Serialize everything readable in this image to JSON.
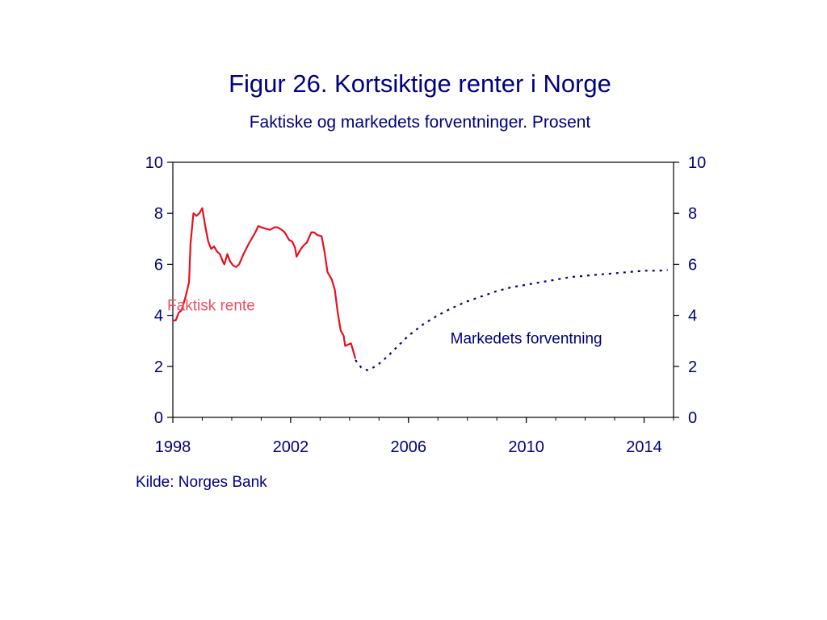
{
  "title": "Figur 26. Kortsiktige renter i Norge",
  "subtitle": "Faktiske og markedets forventninger. Prosent",
  "source": "Kilde: Norges Bank",
  "colors": {
    "actual": "#e8101c",
    "expected": "#000080",
    "text": "#000080",
    "annotation_actual": "#f05060"
  },
  "chart_data": {
    "type": "line",
    "title": "Figur 26. Kortsiktige renter i Norge",
    "subtitle": "Faktiske og markedets forventninger. Prosent",
    "xlabel": "",
    "ylabel": "",
    "xlim": [
      1998,
      2015
    ],
    "ylim": [
      0,
      10
    ],
    "x_ticks": [
      "1998",
      "2002",
      "2006",
      "2010",
      "2014"
    ],
    "y_ticks": [
      "0",
      "2",
      "4",
      "6",
      "8",
      "10"
    ],
    "grid": false,
    "dual_y_axis": true,
    "series": [
      {
        "label": "Faktisk rente",
        "style": "solid",
        "color": "#e8101c",
        "points": [
          [
            1998.0,
            3.8
          ],
          [
            1998.1,
            3.8
          ],
          [
            1998.2,
            4.1
          ],
          [
            1998.3,
            4.2
          ],
          [
            1998.45,
            4.8
          ],
          [
            1998.55,
            5.3
          ],
          [
            1998.6,
            6.8
          ],
          [
            1998.7,
            8.0
          ],
          [
            1998.8,
            7.9
          ],
          [
            1998.9,
            8.0
          ],
          [
            1999.0,
            8.2
          ],
          [
            1999.1,
            7.5
          ],
          [
            1999.2,
            6.9
          ],
          [
            1999.3,
            6.6
          ],
          [
            1999.4,
            6.7
          ],
          [
            1999.5,
            6.5
          ],
          [
            1999.6,
            6.4
          ],
          [
            1999.7,
            6.1
          ],
          [
            1999.75,
            6.0
          ],
          [
            1999.85,
            6.4
          ],
          [
            1999.95,
            6.1
          ],
          [
            2000.05,
            5.95
          ],
          [
            2000.15,
            5.9
          ],
          [
            2000.25,
            6.0
          ],
          [
            2000.4,
            6.4
          ],
          [
            2000.6,
            6.85
          ],
          [
            2000.8,
            7.25
          ],
          [
            2000.9,
            7.5
          ],
          [
            2001.0,
            7.45
          ],
          [
            2001.15,
            7.4
          ],
          [
            2001.3,
            7.35
          ],
          [
            2001.45,
            7.45
          ],
          [
            2001.55,
            7.45
          ],
          [
            2001.7,
            7.35
          ],
          [
            2001.8,
            7.25
          ],
          [
            2001.95,
            6.95
          ],
          [
            2002.05,
            6.9
          ],
          [
            2002.15,
            6.65
          ],
          [
            2002.2,
            6.3
          ],
          [
            2002.35,
            6.6
          ],
          [
            2002.45,
            6.75
          ],
          [
            2002.55,
            6.85
          ],
          [
            2002.7,
            7.25
          ],
          [
            2002.8,
            7.25
          ],
          [
            2002.9,
            7.15
          ],
          [
            2003.05,
            7.1
          ],
          [
            2003.15,
            6.5
          ],
          [
            2003.25,
            5.7
          ],
          [
            2003.4,
            5.4
          ],
          [
            2003.5,
            5.0
          ],
          [
            2003.6,
            4.1
          ],
          [
            2003.7,
            3.4
          ],
          [
            2003.8,
            3.2
          ],
          [
            2003.85,
            2.8
          ],
          [
            2003.95,
            2.85
          ],
          [
            2004.05,
            2.9
          ],
          [
            2004.1,
            2.7
          ],
          [
            2004.2,
            2.3
          ]
        ]
      },
      {
        "label": "Markedets forventning",
        "style": "dotted",
        "color": "#000080",
        "points": [
          [
            2004.2,
            2.25
          ],
          [
            2004.4,
            1.95
          ],
          [
            2004.6,
            1.85
          ],
          [
            2004.8,
            1.95
          ],
          [
            2005.0,
            2.1
          ],
          [
            2005.3,
            2.4
          ],
          [
            2005.6,
            2.75
          ],
          [
            2006.0,
            3.2
          ],
          [
            2006.5,
            3.65
          ],
          [
            2007.0,
            4.0
          ],
          [
            2007.5,
            4.3
          ],
          [
            2008.0,
            4.55
          ],
          [
            2008.5,
            4.75
          ],
          [
            2009.0,
            4.95
          ],
          [
            2009.5,
            5.1
          ],
          [
            2010.0,
            5.2
          ],
          [
            2010.5,
            5.3
          ],
          [
            2011.0,
            5.4
          ],
          [
            2011.5,
            5.5
          ],
          [
            2012.0,
            5.55
          ],
          [
            2012.5,
            5.6
          ],
          [
            2013.0,
            5.65
          ],
          [
            2013.5,
            5.7
          ],
          [
            2014.0,
            5.75
          ],
          [
            2014.5,
            5.75
          ],
          [
            2014.8,
            5.78
          ]
        ]
      }
    ],
    "annotations": [
      {
        "text": "Faktisk rente",
        "series": "Faktisk rente",
        "anchor_x": 1999.3,
        "anchor_y": 4.2
      },
      {
        "text": "Markedets forventning",
        "series": "Markedets forventning",
        "anchor_x": 2010.0,
        "anchor_y": 2.9
      }
    ]
  }
}
